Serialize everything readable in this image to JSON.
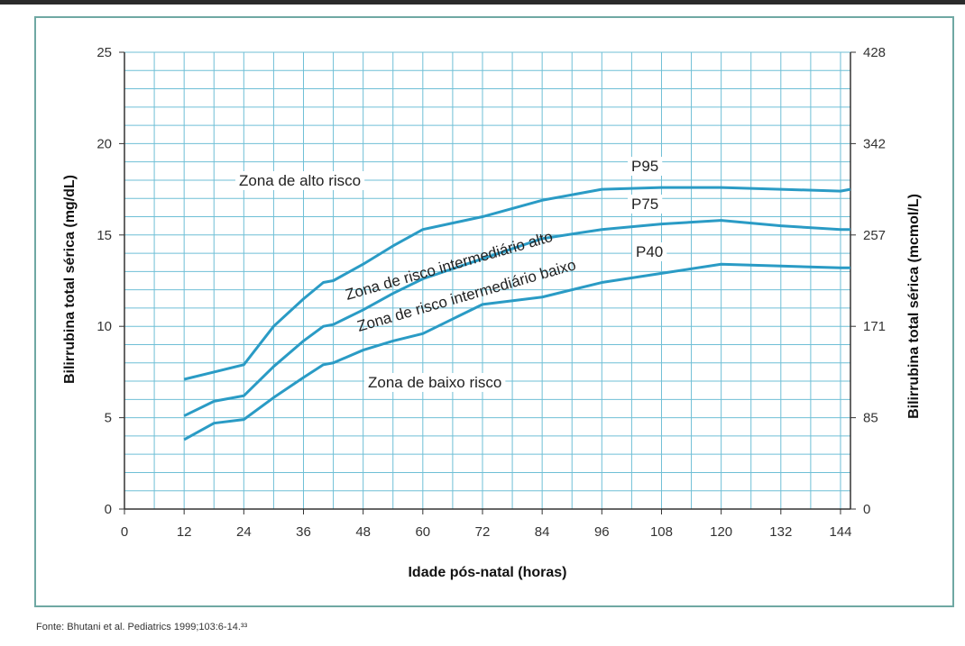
{
  "chart_data": {
    "type": "line",
    "x_label": "Idade pós-natal (horas)",
    "y_left_label": "Bilirrubina total sérica (mg/dL)",
    "y_right_label": "Bilirrubina total sérica (mcmol/L)",
    "x_ticks": [
      "0",
      "12",
      "24",
      "36",
      "48",
      "60",
      "72",
      "84",
      "96",
      "108",
      "120",
      "132",
      "144"
    ],
    "y_left_ticks": [
      "0",
      "5",
      "10",
      "15",
      "20",
      "25"
    ],
    "y_right_ticks": [
      "0",
      "85",
      "171",
      "257",
      "342",
      "428"
    ],
    "xlim": [
      0,
      146
    ],
    "ylim": [
      0,
      25
    ],
    "grid": true,
    "series": [
      {
        "name": "P95",
        "color": "#2a9bc5",
        "x": [
          12,
          18,
          24,
          30,
          36,
          40,
          42,
          48,
          54,
          60,
          72,
          84,
          96,
          108,
          120,
          132,
          144,
          146
        ],
        "y": [
          7.1,
          7.5,
          7.9,
          10.0,
          11.5,
          12.4,
          12.5,
          13.4,
          14.4,
          15.3,
          16.0,
          16.9,
          17.5,
          17.6,
          17.6,
          17.5,
          17.4,
          17.5
        ]
      },
      {
        "name": "P75",
        "color": "#2a9bc5",
        "x": [
          12,
          18,
          24,
          30,
          36,
          40,
          42,
          48,
          54,
          60,
          72,
          84,
          96,
          108,
          120,
          132,
          144,
          146
        ],
        "y": [
          5.1,
          5.9,
          6.2,
          7.8,
          9.2,
          10.0,
          10.1,
          10.9,
          11.8,
          12.6,
          13.7,
          14.8,
          15.3,
          15.6,
          15.8,
          15.5,
          15.3,
          15.3
        ]
      },
      {
        "name": "P40",
        "color": "#2a9bc5",
        "x": [
          12,
          18,
          24,
          30,
          36,
          40,
          42,
          48,
          54,
          60,
          66,
          72,
          84,
          96,
          108,
          120,
          132,
          144,
          146
        ],
        "y": [
          3.8,
          4.7,
          4.9,
          6.1,
          7.2,
          7.9,
          8.0,
          8.7,
          9.2,
          9.6,
          10.4,
          11.2,
          11.6,
          12.4,
          12.9,
          13.4,
          13.3,
          13.2,
          13.2
        ]
      }
    ],
    "annotations": [
      {
        "text": "P95"
      },
      {
        "text": "P75"
      },
      {
        "text": "P40"
      },
      {
        "text": "Zona de alto risco"
      },
      {
        "text": "Zona de risco intermediário alto"
      },
      {
        "text": "Zona de risco intermediário baixo"
      },
      {
        "text": "Zona de baixo risco"
      }
    ]
  },
  "source": "Fonte: Bhutani et al. Pediatrics 1999;103:6-14.³³"
}
